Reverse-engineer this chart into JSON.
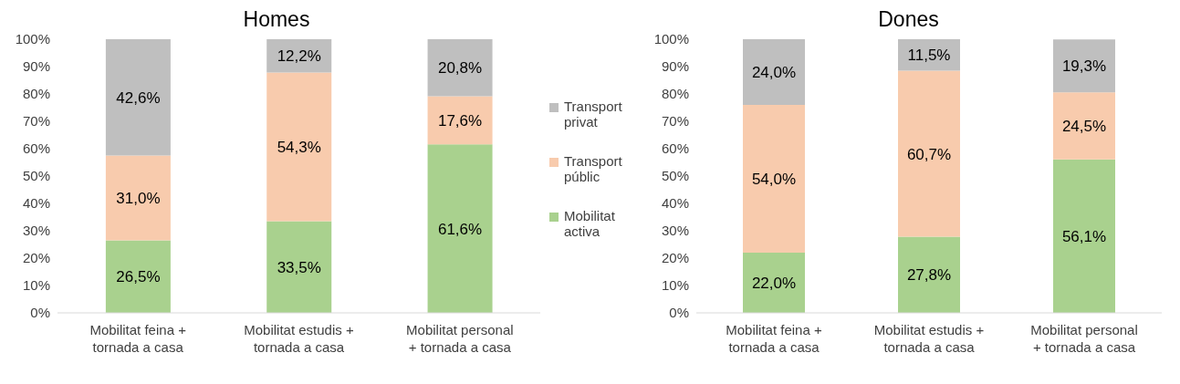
{
  "chart_data": [
    {
      "type": "bar",
      "title": "Homes",
      "stacked": true,
      "legend": "right",
      "grid": false,
      "categories": [
        "Mobilitat feina + tornada a casa",
        "Mobilitat estudis + tornada a casa",
        "Mobilitat personal + tornada a casa"
      ],
      "ylim": [
        0,
        100
      ],
      "yticks": [
        {
          "value": 0,
          "label": "0%"
        },
        {
          "value": 10,
          "label": "10%"
        },
        {
          "value": 20,
          "label": "20%"
        },
        {
          "value": 30,
          "label": "30%"
        },
        {
          "value": 40,
          "label": "40%"
        },
        {
          "value": 50,
          "label": "50%"
        },
        {
          "value": 60,
          "label": "60%"
        },
        {
          "value": 70,
          "label": "70%"
        },
        {
          "value": 80,
          "label": "80%"
        },
        {
          "value": 90,
          "label": "90%"
        },
        {
          "value": 100,
          "label": "100%"
        }
      ],
      "series": [
        {
          "name": "Mobilitat activa",
          "color": "#a9d18e",
          "values": [
            26.5,
            33.5,
            61.6
          ],
          "value_labels": [
            "26,5%",
            "33,5%",
            "61,6%"
          ]
        },
        {
          "name": "Transport públic",
          "color": "#f8cbad",
          "values": [
            31.0,
            54.3,
            17.6
          ],
          "value_labels": [
            "31,0%",
            "54,3%",
            "17,6%"
          ]
        },
        {
          "name": "Transport privat",
          "color": "#bfbfbf",
          "values": [
            42.6,
            12.2,
            20.8
          ],
          "value_labels": [
            "42,6%",
            "12,2%",
            "20,8%"
          ]
        }
      ]
    },
    {
      "type": "bar",
      "title": "Dones",
      "stacked": true,
      "legend": false,
      "grid": false,
      "categories": [
        "Mobilitat feina + tornada a casa",
        "Mobilitat estudis + tornada a casa",
        "Mobilitat personal + tornada a casa"
      ],
      "ylim": [
        0,
        100
      ],
      "yticks": [
        {
          "value": 0,
          "label": "0%"
        },
        {
          "value": 10,
          "label": "10%"
        },
        {
          "value": 20,
          "label": "20%"
        },
        {
          "value": 30,
          "label": "30%"
        },
        {
          "value": 40,
          "label": "40%"
        },
        {
          "value": 50,
          "label": "50%"
        },
        {
          "value": 60,
          "label": "60%"
        },
        {
          "value": 70,
          "label": "70%"
        },
        {
          "value": 80,
          "label": "80%"
        },
        {
          "value": 90,
          "label": "90%"
        },
        {
          "value": 100,
          "label": "100%"
        }
      ],
      "series": [
        {
          "color": "#a9d18e",
          "values": [
            22.0,
            27.8,
            56.1
          ],
          "value_labels": [
            "22,0%",
            "27,8%",
            "56,1%"
          ]
        },
        {
          "color": "#f8cbad",
          "values": [
            54.0,
            60.7,
            24.5
          ],
          "value_labels": [
            "54,0%",
            "60,7%",
            "24,5%"
          ]
        },
        {
          "color": "#bfbfbf",
          "values": [
            24.0,
            11.5,
            19.3
          ],
          "value_labels": [
            "24,0%",
            "11,5%",
            "19,3%"
          ]
        }
      ]
    }
  ]
}
